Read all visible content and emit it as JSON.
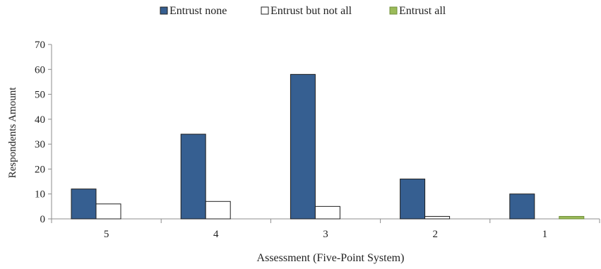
{
  "chart_data": {
    "type": "bar",
    "title": "",
    "xlabel": "Assessment (Five-Point System)",
    "ylabel": "Respondents Amount",
    "categories": [
      "5",
      "4",
      "3",
      "2",
      "1"
    ],
    "series": [
      {
        "name": "Entrust none",
        "values": [
          12,
          34,
          58,
          16,
          10
        ],
        "color": "#365f91",
        "stroke": "#1f1f1f"
      },
      {
        "name": "Entrust but not all",
        "values": [
          6,
          7,
          5,
          1,
          0
        ],
        "color": "#ffffff",
        "stroke": "#1f1f1f"
      },
      {
        "name": "Entrust all",
        "values": [
          0,
          0,
          0,
          0,
          1
        ],
        "color": "#9bbb59",
        "stroke": "#6f8f3a"
      }
    ],
    "ylim": [
      0,
      70
    ],
    "yticks": [
      0,
      10,
      20,
      30,
      40,
      50,
      60,
      70
    ],
    "grid": false,
    "legend_position": "top-center"
  }
}
